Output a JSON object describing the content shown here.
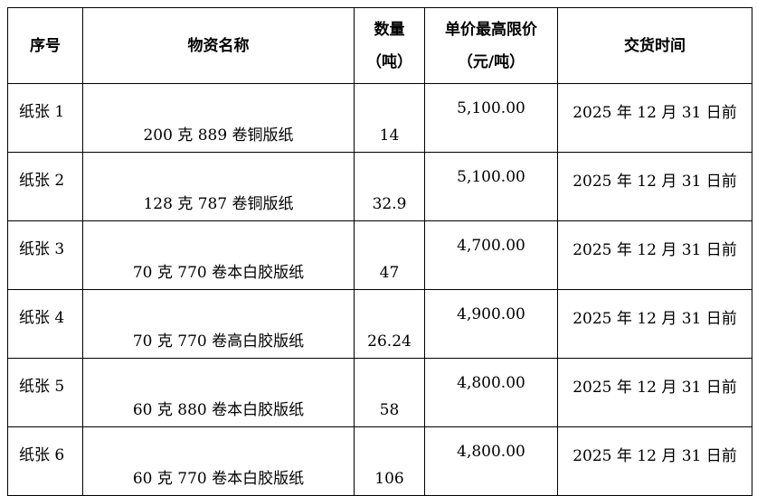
{
  "headers": [
    "序号",
    "物资名称",
    "数量",
    "（吨）",
    "单价最高限价",
    "（元/吨）",
    "交货时间"
  ],
  "rows": [
    [
      "纸张 1",
      "200 克 889 卷铜版纸",
      "14",
      "5,100.00",
      "2025 年 12 月 31 日前"
    ],
    [
      "纸张 2",
      "128 克 787 卷铜版纸",
      "32.9",
      "5,100.00",
      "2025 年 12 月 31 日前"
    ],
    [
      "纸张 3",
      "70 克 770 卷本白胶版纸",
      "47",
      "4,700.00",
      "2025 年 12 月 31 日前"
    ],
    [
      "纸张 4",
      "70 克 770 卷高白胶版纸",
      "26.24",
      "4,900.00",
      "2025 年 12 月 31 日前"
    ],
    [
      "纸张 5",
      "60 克 880 卷本白胶版纸",
      "58",
      "4,800.00",
      "2025 年 12 月 31 日前"
    ],
    [
      "纸张 6",
      "60 克 770 卷本白胶版纸",
      "106",
      "4,800.00",
      "2025 年 12 月 31 日前"
    ]
  ]
}
